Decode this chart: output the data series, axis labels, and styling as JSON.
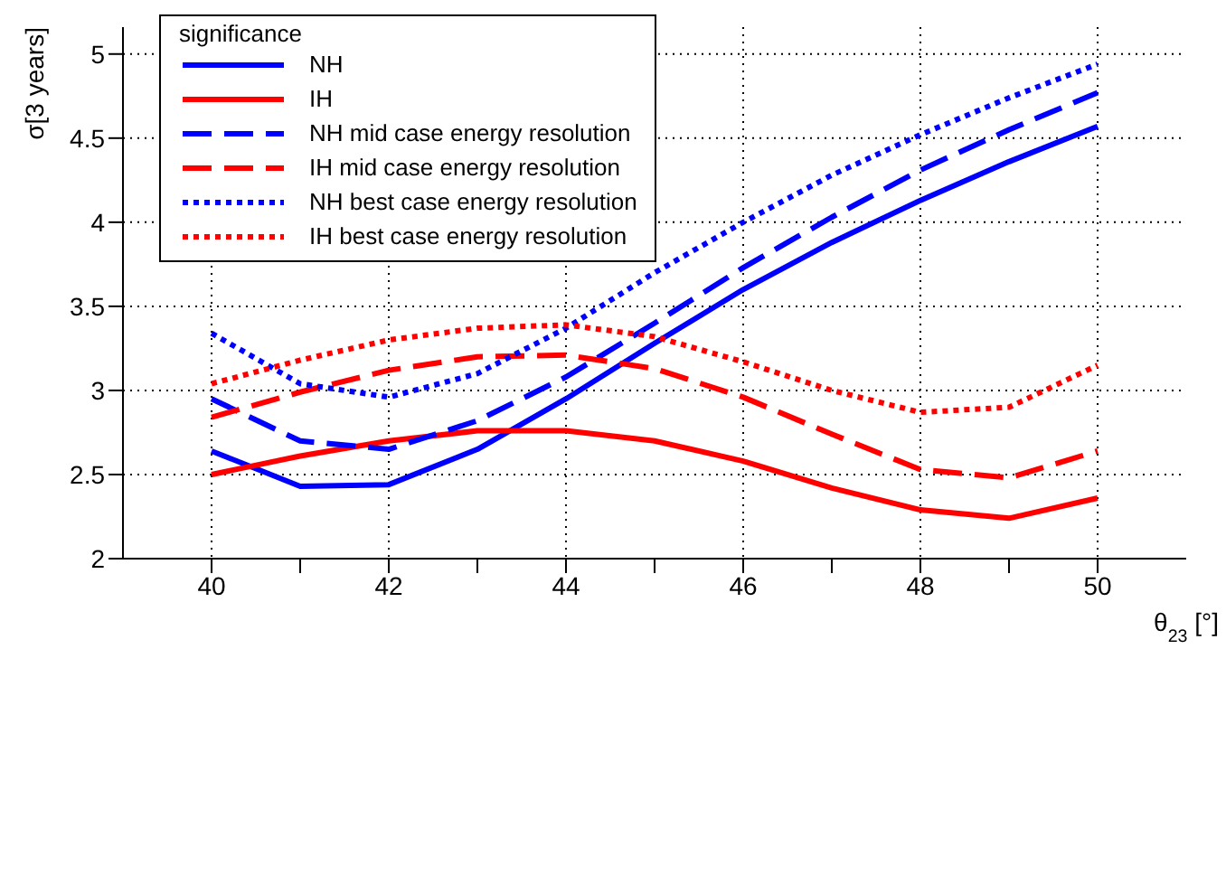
{
  "chart_data": {
    "type": "line",
    "xlabel": "θ$_{23}$ [°]",
    "ylabel": "σ[3 years]",
    "legend_title": "significance",
    "x": [
      40,
      41,
      42,
      43,
      44,
      45,
      46,
      47,
      48,
      49,
      50
    ],
    "xlim": [
      39,
      51
    ],
    "xticks": [
      40,
      {
        "value": 41,
        "label": null
      },
      42,
      {
        "value": 43,
        "label": null
      },
      44,
      {
        "value": 45,
        "label": null
      },
      46,
      {
        "value": 47,
        "label": null
      },
      48,
      {
        "value": 49,
        "label": null
      },
      50
    ],
    "ylim": [
      2,
      5.16
    ],
    "yticks": [
      2,
      2.5,
      3,
      3.5,
      4,
      4.5,
      5
    ],
    "grid": true,
    "legend": "top left",
    "marker": "none",
    "series": [
      {
        "name": "NH",
        "color": "#0000ff",
        "line_style": "solid",
        "values": [
          2.64,
          2.43,
          2.44,
          2.65,
          2.95,
          3.28,
          3.6,
          3.88,
          4.13,
          4.36,
          4.57
        ]
      },
      {
        "name": "IH",
        "color": "#ff0000",
        "line_style": "solid",
        "values": [
          2.5,
          2.61,
          2.7,
          2.76,
          2.76,
          2.7,
          2.58,
          2.42,
          2.29,
          2.24,
          2.36
        ]
      },
      {
        "name": "NH mid case energy resolution",
        "color": "#0000ff",
        "line_style": "dashed",
        "values": [
          2.95,
          2.7,
          2.65,
          2.82,
          3.08,
          3.4,
          3.73,
          4.03,
          4.31,
          4.55,
          4.77
        ]
      },
      {
        "name": "IH mid case energy resolution",
        "color": "#ff0000",
        "line_style": "dashed",
        "values": [
          2.84,
          2.99,
          3.12,
          3.2,
          3.21,
          3.13,
          2.96,
          2.74,
          2.53,
          2.48,
          2.64
        ]
      },
      {
        "name": "NH best case energy resolution",
        "color": "#0000ff",
        "line_style": "dotted",
        "values": [
          3.34,
          3.04,
          2.96,
          3.1,
          3.37,
          3.7,
          4.0,
          4.28,
          4.52,
          4.74,
          4.94
        ]
      },
      {
        "name": "IH best case energy resolution",
        "color": "#ff0000",
        "line_style": "dotted",
        "values": [
          3.04,
          3.18,
          3.3,
          3.37,
          3.39,
          3.32,
          3.17,
          3.0,
          2.87,
          2.9,
          3.15
        ]
      }
    ]
  }
}
